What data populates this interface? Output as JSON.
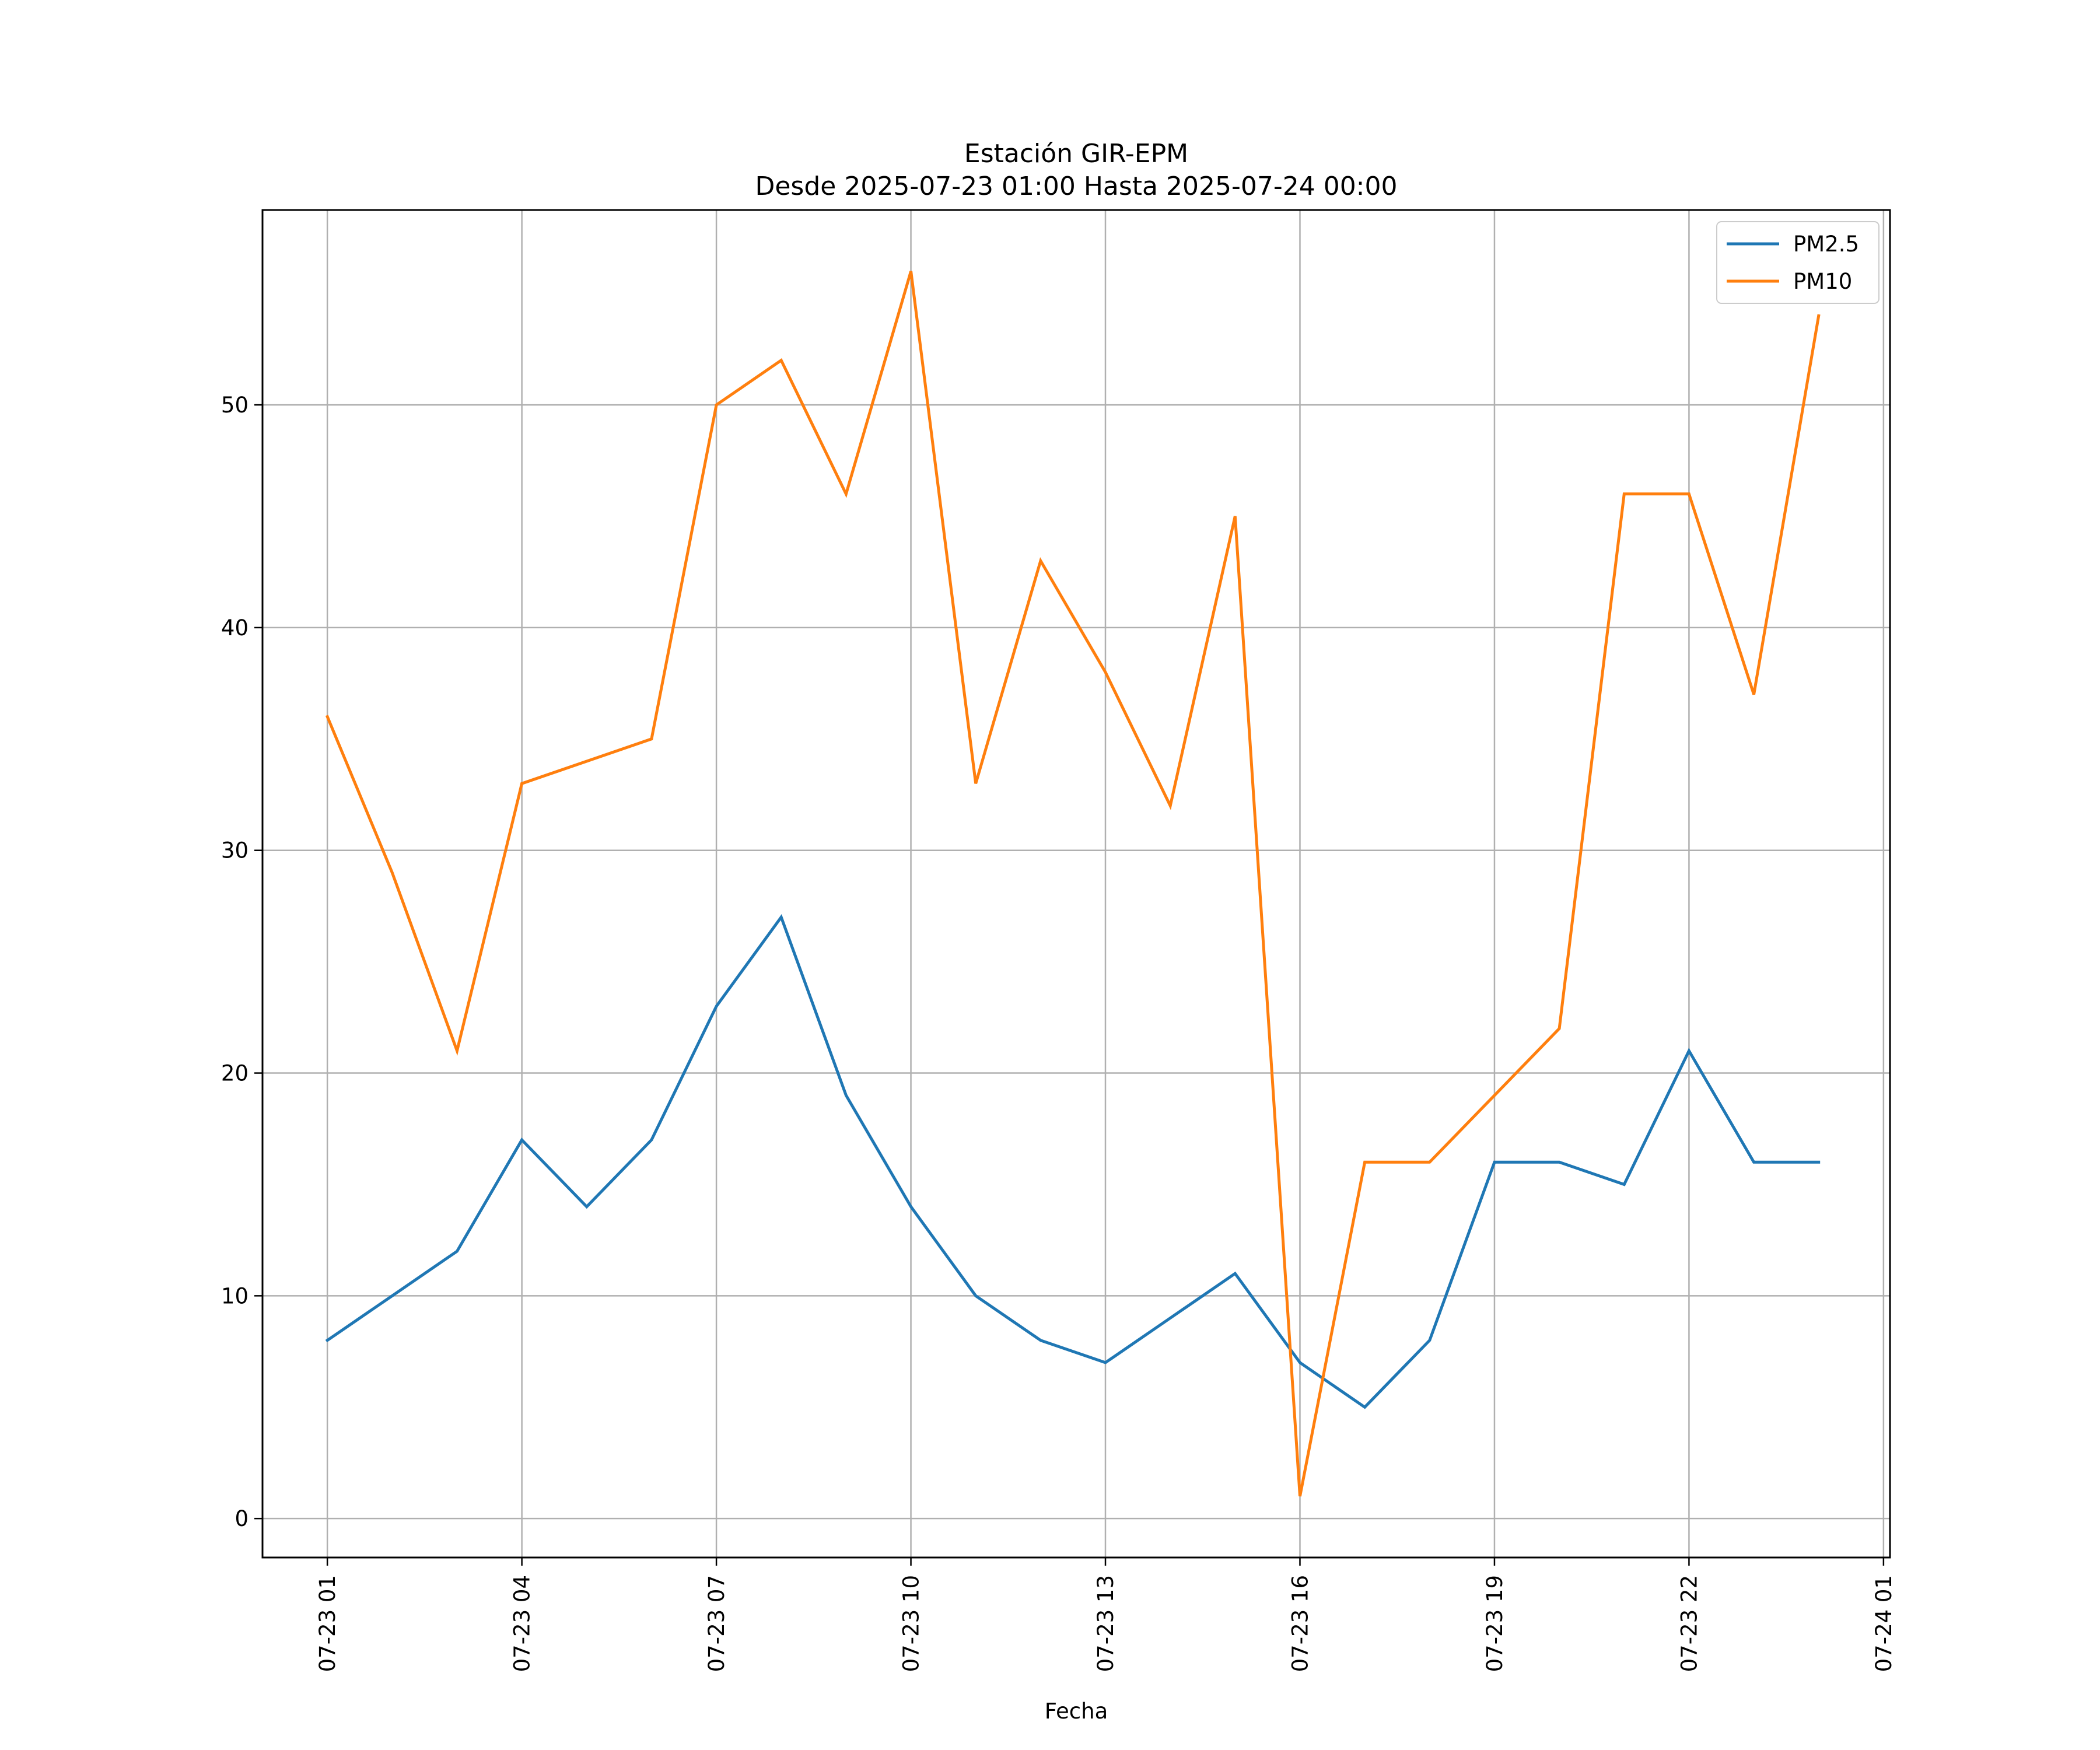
{
  "chart_data": {
    "type": "line",
    "title": "Estación GIR-EPM",
    "subtitle": "Desde 2025-07-23 01:00 Hasta 2025-07-24 00:00",
    "xlabel": "Fecha",
    "ylabel": "",
    "x": [
      "07-23 01",
      "07-23 02",
      "07-23 03",
      "07-23 04",
      "07-23 05",
      "07-23 06",
      "07-23 07",
      "07-23 08",
      "07-23 09",
      "07-23 10",
      "07-23 11",
      "07-23 12",
      "07-23 13",
      "07-23 14",
      "07-23 15",
      "07-23 16",
      "07-23 17",
      "07-23 18",
      "07-23 19",
      "07-23 20",
      "07-23 21",
      "07-23 22",
      "07-23 23",
      "07-24 00"
    ],
    "xlim": [
      "07-23 00:00",
      "07-24 01:06"
    ],
    "ylim": [
      -1.75,
      58.75
    ],
    "x_ticks": [
      "07-23 01",
      "07-23 04",
      "07-23 07",
      "07-23 10",
      "07-23 13",
      "07-23 16",
      "07-23 19",
      "07-23 22",
      "07-24 01"
    ],
    "y_ticks": [
      0,
      10,
      20,
      30,
      40,
      50
    ],
    "grid": true,
    "legend_position": "top-right",
    "series": [
      {
        "name": "PM2.5",
        "color": "#1f77b4",
        "values": [
          8,
          10,
          12,
          17,
          14,
          17,
          23,
          27,
          19,
          14,
          10,
          8,
          7,
          9,
          11,
          7,
          5,
          8,
          16,
          16,
          15,
          21,
          16,
          16
        ]
      },
      {
        "name": "PM10",
        "color": "#ff7f0e",
        "values": [
          36,
          29,
          21,
          33,
          34,
          35,
          50,
          52,
          46,
          56,
          33,
          43,
          38,
          32,
          45,
          1,
          16,
          16,
          19,
          22,
          46,
          46,
          37,
          54
        ]
      }
    ]
  }
}
